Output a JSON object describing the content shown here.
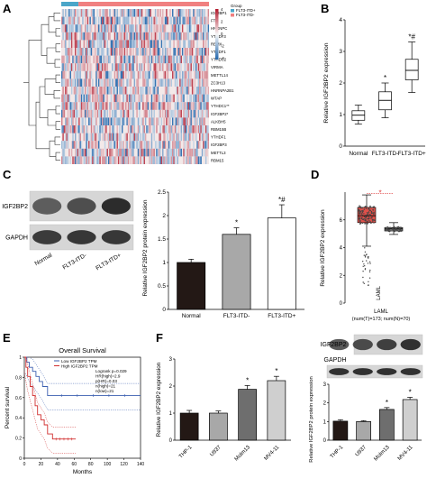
{
  "panel_letters": {
    "A": "A",
    "B": "B",
    "C": "C",
    "D": "D",
    "E": "E",
    "F": "F"
  },
  "colors": {
    "heat_low": "#2166ac",
    "heat_mid": "#f7f7f7",
    "heat_high": "#b2182b",
    "group_a": "#4aa6c9",
    "group_b": "#f08080",
    "bar_dark": "#231815",
    "bar_mid": "#a8a8a8",
    "bar_light": "#ffffff",
    "gepia_red": "#e0504a",
    "gepia_grey": "#888888",
    "km_low": "#3b5fb0",
    "km_high": "#d12d2d"
  },
  "chart_data": [
    {
      "panel": "A",
      "type": "heatmap",
      "rows": [
        "IGF2BP1",
        "FTO",
        "HNRNPC",
        "YTHDF3",
        "RBMX",
        "YTHDF1",
        "YTHDC2",
        "VIRMA",
        "METTL14",
        "ZC3H13",
        "HNRNPA2B1",
        "WTAP",
        "YTHDC1**",
        "IGF2BP2*",
        "ALKBH5",
        "RBM15B",
        "YTHDF1",
        "IGF2BP3",
        "METTL3",
        "RBM15"
      ],
      "legend_title": "Group",
      "legend_entries": [
        "FLT3-ITD+",
        "FLT3-ITD-"
      ],
      "color_scale_ticks": [
        "4",
        "2",
        "0",
        "-2",
        "-4"
      ],
      "color_range": [
        -4,
        4
      ]
    },
    {
      "panel": "B",
      "type": "box",
      "categories": [
        "Normal",
        "FLT3-ITD-",
        "FLT3-ITD+"
      ],
      "ylabel": "Relative IGF2BP2 expression",
      "ylim": [
        0,
        4
      ],
      "yticks": [
        0,
        1,
        2,
        3,
        4
      ],
      "boxes": [
        {
          "min": 0.7,
          "q1": 0.82,
          "median": 0.98,
          "q3": 1.12,
          "max": 1.3
        },
        {
          "min": 0.9,
          "q1": 1.15,
          "median": 1.45,
          "q3": 1.72,
          "max": 2.0
        },
        {
          "min": 1.7,
          "q1": 2.1,
          "median": 2.4,
          "q3": 2.75,
          "max": 3.3
        }
      ],
      "annotations": [
        "",
        "*",
        "*#"
      ]
    },
    {
      "panel": "C",
      "type": "bar",
      "blot_rows": [
        "IGF2BP2",
        "GAPDH"
      ],
      "blot_lanes": [
        "Normal",
        "FLT3-ITD-",
        "FLT3-ITD+"
      ],
      "categories": [
        "Normal",
        "FLT3-ITD-",
        "FLT3-ITD+"
      ],
      "values": [
        1.0,
        1.6,
        1.95
      ],
      "errors": [
        0.07,
        0.14,
        0.28
      ],
      "ylabel": "Relative IGF2BP2 protein expression",
      "ylim": [
        0,
        2.5
      ],
      "yticks": [
        0,
        0.5,
        1,
        1.5,
        2,
        2.5
      ],
      "annotations": [
        "",
        "*",
        "*#"
      ]
    },
    {
      "panel": "D",
      "type": "box",
      "title": "",
      "ylabel": "Relative IGF2BP2 expression",
      "yticks": [
        0,
        2,
        4,
        6
      ],
      "ylim": [
        0,
        8
      ],
      "xlabel": "LAML",
      "xlabel2": "(num(T)=173; num(N)=70)",
      "marker": "*",
      "tumor": {
        "min": 4.1,
        "q1": 5.8,
        "median": 6.3,
        "q3": 6.9,
        "max": 7.8
      },
      "normal": {
        "min": 4.95,
        "q1": 5.2,
        "median": 5.35,
        "q3": 5.45,
        "max": 5.8
      }
    },
    {
      "panel": "E",
      "type": "line",
      "title": "Overall Survival",
      "xlabel": "Months",
      "ylabel": "Percent survival",
      "xlim": [
        0,
        140
      ],
      "xticks": [
        0,
        20,
        40,
        60,
        80,
        100,
        120,
        140
      ],
      "ylim": [
        0,
        1
      ],
      "yticks": [
        0,
        0.2,
        0.4,
        0.6,
        0.8,
        1
      ],
      "legend": [
        "Low IGF2BP2 TPM",
        "High IGF2BP2 TPM"
      ],
      "stats": [
        "Logrank p=0.029",
        "HR(high)=2.9",
        "p(HR)=0.03",
        "n(high)=21",
        "n(low)=21"
      ],
      "series": [
        {
          "name": "Low IGF2BP2 TPM",
          "x": [
            0,
            3,
            6,
            10,
            14,
            18,
            22,
            28,
            140
          ],
          "y": [
            1,
            0.95,
            0.9,
            0.86,
            0.81,
            0.76,
            0.71,
            0.62,
            0.62
          ]
        },
        {
          "name": "High IGF2BP2 TPM",
          "x": [
            0,
            2,
            4,
            7,
            10,
            13,
            16,
            20,
            24,
            28,
            34,
            62
          ],
          "y": [
            1,
            0.9,
            0.81,
            0.71,
            0.62,
            0.52,
            0.43,
            0.38,
            0.33,
            0.24,
            0.19,
            0.19
          ]
        }
      ]
    },
    {
      "panel": "F1",
      "type": "bar",
      "categories": [
        "THP-1",
        "U937",
        "Molm13",
        "MV4-11"
      ],
      "values": [
        1.0,
        1.0,
        1.88,
        2.2
      ],
      "errors": [
        0.1,
        0.08,
        0.14,
        0.16
      ],
      "ylabel": "Relative IGF2BP2 expression",
      "ylim": [
        0,
        3
      ],
      "yticks": [
        0,
        1,
        2,
        3
      ],
      "annotations": [
        "",
        "",
        "*",
        "*"
      ]
    },
    {
      "panel": "F2",
      "type": "bar",
      "blot_rows": [
        "IGF2BP2",
        "GAPDH"
      ],
      "categories": [
        "THP-1",
        "U937",
        "Molm13",
        "MV4-11"
      ],
      "values": [
        1.02,
        1.0,
        1.65,
        2.18
      ],
      "errors": [
        0.08,
        0.05,
        0.1,
        0.12
      ],
      "ylabel": "Relative IGF2BP2 protein expression",
      "ylim": [
        0,
        3
      ],
      "yticks": [
        0,
        1,
        2,
        3
      ],
      "annotations": [
        "",
        "",
        "*",
        "*"
      ]
    }
  ]
}
